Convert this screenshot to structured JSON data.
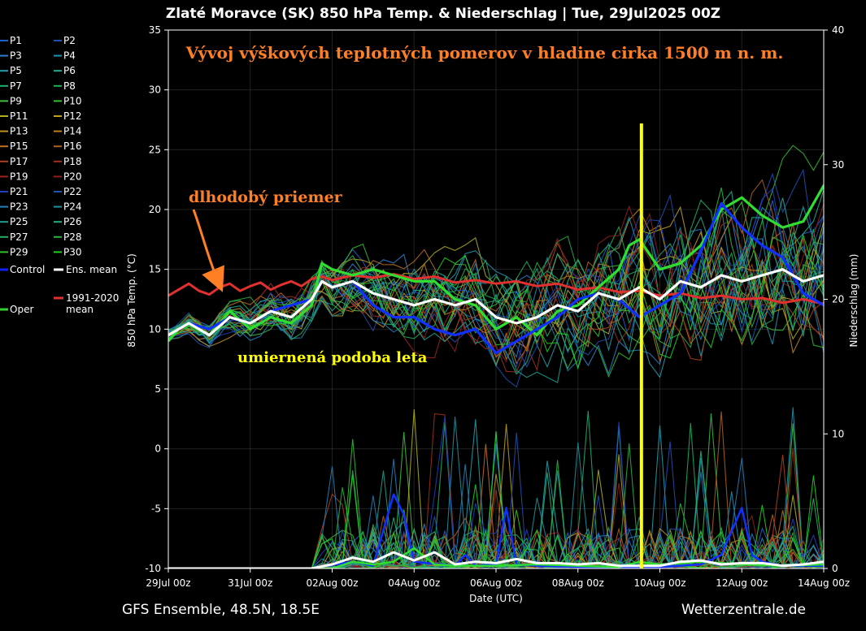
{
  "chart_data": {
    "type": "line",
    "title": "Zlaté Moravce  (SK)  850 hPa Temp. & Niederschlag | Tue, 29Jul2025 00Z",
    "ylabel": "850 hPa Temp. (°C)",
    "y2label": "Niederschlag (mm)",
    "xlabel": "Date (UTC)",
    "ylim": [
      -10,
      35
    ],
    "y2lim": [
      0,
      40
    ],
    "xlim": [
      0,
      16
    ],
    "y_ticks": [
      "35",
      "30",
      "25",
      "20",
      "15",
      "10",
      "5",
      "0",
      "-5",
      "-10"
    ],
    "y_tick_values": [
      35,
      30,
      25,
      20,
      15,
      10,
      5,
      0,
      -5,
      -10
    ],
    "y2_ticks": [
      "40",
      "30",
      "20",
      "10",
      "0"
    ],
    "y2_tick_values": [
      40,
      30,
      20,
      10,
      0
    ],
    "x_ticks": [
      "29Jul 00z",
      "31Jul 00z",
      "02Aug 00z",
      "04Aug 00z",
      "06Aug 00z",
      "08Aug 00z",
      "10Aug 00z",
      "12Aug 00z",
      "14Aug 00z"
    ],
    "x_tick_values": [
      0,
      2,
      4,
      6,
      8,
      10,
      12,
      14,
      16
    ],
    "grid": true,
    "legend_placement": "left",
    "legend": [
      {
        "label": "P1",
        "color": "#1f5fd0"
      },
      {
        "label": "P2",
        "color": "#1f4fb0"
      },
      {
        "label": "P3",
        "color": "#2a7fd0"
      },
      {
        "label": "P4",
        "color": "#2090b0"
      },
      {
        "label": "P5",
        "color": "#20a0b0"
      },
      {
        "label": "P6",
        "color": "#20b090"
      },
      {
        "label": "P7",
        "color": "#20b070"
      },
      {
        "label": "P8",
        "color": "#20b050"
      },
      {
        "label": "P9",
        "color": "#40c040"
      },
      {
        "label": "P10",
        "color": "#30c030"
      },
      {
        "label": "P11",
        "color": "#b0b020"
      },
      {
        "label": "P12",
        "color": "#c0a020"
      },
      {
        "label": "P13",
        "color": "#c09020"
      },
      {
        "label": "P14",
        "color": "#c08020"
      },
      {
        "label": "P15",
        "color": "#c07020"
      },
      {
        "label": "P16",
        "color": "#b06020"
      },
      {
        "label": "P17",
        "color": "#b04020"
      },
      {
        "label": "P18",
        "color": "#a03020"
      },
      {
        "label": "P19",
        "color": "#a02020"
      },
      {
        "label": "P20",
        "color": "#902020"
      },
      {
        "label": "P21",
        "color": "#2040c0"
      },
      {
        "label": "P22",
        "color": "#2050b0"
      },
      {
        "label": "P23",
        "color": "#2080c0"
      },
      {
        "label": "P24",
        "color": "#2090a0"
      },
      {
        "label": "P25",
        "color": "#20a090"
      },
      {
        "label": "P26",
        "color": "#20b080"
      },
      {
        "label": "P27",
        "color": "#20b060"
      },
      {
        "label": "P28",
        "color": "#30b040"
      },
      {
        "label": "P29",
        "color": "#30c030"
      },
      {
        "label": "P30",
        "color": "#20d020"
      },
      {
        "label": "Control",
        "color": "#1020ff"
      },
      {
        "label": "Ens. mean",
        "color": "#ffffff"
      },
      {
        "label": "1991-2020",
        "label2": "mean",
        "color": "#e03030"
      },
      {
        "label": "Oper",
        "color": "#30d030"
      }
    ],
    "series": [
      {
        "name": "Oper",
        "color": "#30dd30",
        "width": 3.2,
        "values": [
          [
            0,
            9
          ],
          [
            0.25,
            10
          ],
          [
            0.5,
            10.5
          ],
          [
            1,
            9.5
          ],
          [
            1.25,
            10.5
          ],
          [
            1.5,
            11.5
          ],
          [
            2,
            10
          ],
          [
            2.5,
            11
          ],
          [
            3,
            10.5
          ],
          [
            3.5,
            12
          ],
          [
            3.75,
            15.5
          ],
          [
            4,
            15
          ],
          [
            4.5,
            14.5
          ],
          [
            5,
            15
          ],
          [
            5.5,
            14.5
          ],
          [
            6,
            14
          ],
          [
            6.5,
            14
          ],
          [
            7,
            12.5
          ],
          [
            7.5,
            12
          ],
          [
            8,
            10
          ],
          [
            8.5,
            11
          ],
          [
            9,
            9.5
          ],
          [
            9.5,
            11.5
          ],
          [
            10,
            12
          ],
          [
            10.5,
            13.5
          ],
          [
            11,
            15
          ],
          [
            11.25,
            17
          ],
          [
            11.5,
            17.5
          ],
          [
            12,
            15
          ],
          [
            12.5,
            15.5
          ],
          [
            13,
            17
          ],
          [
            13.5,
            20
          ],
          [
            14,
            21
          ],
          [
            14.5,
            19.5
          ],
          [
            15,
            18.5
          ],
          [
            15.5,
            19
          ],
          [
            16,
            22
          ],
          [
            16.2,
            21.5
          ]
        ]
      },
      {
        "name": "Control",
        "color": "#1030ff",
        "width": 3.2,
        "values": [
          [
            0,
            9.5
          ],
          [
            0.5,
            10.5
          ],
          [
            1,
            10
          ],
          [
            1.5,
            11
          ],
          [
            2,
            10.5
          ],
          [
            2.5,
            11.5
          ],
          [
            3,
            12
          ],
          [
            3.5,
            12.5
          ],
          [
            3.75,
            14
          ],
          [
            4,
            13.5
          ],
          [
            4.5,
            14
          ],
          [
            5,
            12
          ],
          [
            5.5,
            11
          ],
          [
            6,
            11
          ],
          [
            6.5,
            10
          ],
          [
            7,
            9.5
          ],
          [
            7.5,
            10
          ],
          [
            8,
            8
          ],
          [
            8.5,
            9
          ],
          [
            9,
            10
          ],
          [
            9.5,
            11
          ],
          [
            10,
            12.5
          ],
          [
            10.5,
            13
          ],
          [
            11,
            12.5
          ],
          [
            11.5,
            11
          ],
          [
            12,
            12
          ],
          [
            12.5,
            13
          ],
          [
            13,
            16.5
          ],
          [
            13.5,
            20.5
          ],
          [
            14,
            18.5
          ],
          [
            14.5,
            17
          ],
          [
            15,
            16
          ],
          [
            15.5,
            13
          ],
          [
            16,
            12
          ],
          [
            16.2,
            12
          ]
        ]
      },
      {
        "name": "Ens. mean",
        "color": "#ffffff",
        "width": 3.2,
        "values": [
          [
            0,
            9.5
          ],
          [
            0.5,
            10.5
          ],
          [
            1,
            9.5
          ],
          [
            1.5,
            11
          ],
          [
            2,
            10.5
          ],
          [
            2.5,
            11.5
          ],
          [
            3,
            11
          ],
          [
            3.5,
            12.5
          ],
          [
            3.75,
            14
          ],
          [
            4,
            13.5
          ],
          [
            4.5,
            14
          ],
          [
            5,
            13
          ],
          [
            5.5,
            12.5
          ],
          [
            6,
            12
          ],
          [
            6.5,
            12.5
          ],
          [
            7,
            12
          ],
          [
            7.5,
            12.5
          ],
          [
            8,
            11
          ],
          [
            8.5,
            10.5
          ],
          [
            9,
            11
          ],
          [
            9.5,
            12
          ],
          [
            10,
            11.5
          ],
          [
            10.5,
            13
          ],
          [
            11,
            12.5
          ],
          [
            11.5,
            13.5
          ],
          [
            12,
            12.5
          ],
          [
            12.5,
            14
          ],
          [
            13,
            13.5
          ],
          [
            13.5,
            14.5
          ],
          [
            14,
            14
          ],
          [
            14.5,
            14.5
          ],
          [
            15,
            15
          ],
          [
            15.5,
            14
          ],
          [
            16,
            14.5
          ],
          [
            16.2,
            14
          ]
        ]
      },
      {
        "name": "1991-2020 mean",
        "color": "#e03030",
        "width": 3,
        "values": [
          [
            0,
            12.8
          ],
          [
            0.25,
            13.3
          ],
          [
            0.5,
            13.8
          ],
          [
            0.75,
            13.2
          ],
          [
            1,
            12.9
          ],
          [
            1.25,
            13.5
          ],
          [
            1.5,
            13.8
          ],
          [
            1.75,
            13.2
          ],
          [
            2,
            13.6
          ],
          [
            2.25,
            13.9
          ],
          [
            2.5,
            13.3
          ],
          [
            2.75,
            13.7
          ],
          [
            3,
            14
          ],
          [
            3.25,
            13.6
          ],
          [
            3.5,
            14.2
          ],
          [
            3.75,
            14.4
          ],
          [
            4,
            14.1
          ],
          [
            4.5,
            14.5
          ],
          [
            5,
            14.3
          ],
          [
            5.5,
            14.6
          ],
          [
            6,
            14.2
          ],
          [
            6.5,
            14.4
          ],
          [
            7,
            13.9
          ],
          [
            7.5,
            14.1
          ],
          [
            8,
            13.8
          ],
          [
            8.5,
            14
          ],
          [
            9,
            13.6
          ],
          [
            9.5,
            13.8
          ],
          [
            10,
            13.3
          ],
          [
            10.5,
            13.5
          ],
          [
            11,
            13.1
          ],
          [
            11.5,
            13.2
          ],
          [
            12,
            12.8
          ],
          [
            12.5,
            13
          ],
          [
            13,
            12.6
          ],
          [
            13.5,
            12.8
          ],
          [
            14,
            12.5
          ],
          [
            14.5,
            12.6
          ],
          [
            15,
            12.2
          ],
          [
            15.5,
            12.5
          ],
          [
            16,
            12.1
          ],
          [
            16.2,
            12.3
          ]
        ]
      }
    ],
    "precip_series": [
      {
        "name": "Control",
        "color": "#1030ff",
        "width": 2.5,
        "values": [
          [
            0,
            0
          ],
          [
            3.5,
            0
          ],
          [
            4.5,
            0.5
          ],
          [
            5,
            0.2
          ],
          [
            5.5,
            5.5
          ],
          [
            5.75,
            4
          ],
          [
            6,
            0.5
          ],
          [
            7,
            0.2
          ],
          [
            7.25,
            1
          ],
          [
            7.5,
            0.2
          ],
          [
            8,
            0.3
          ],
          [
            8.25,
            4.5
          ],
          [
            8.5,
            0.3
          ],
          [
            9,
            0.2
          ],
          [
            10,
            0.1
          ],
          [
            11,
            0.1
          ],
          [
            12,
            0.1
          ],
          [
            13,
            0.3
          ],
          [
            13.5,
            1
          ],
          [
            14,
            4.5
          ],
          [
            14.25,
            1
          ],
          [
            14.5,
            0.5
          ],
          [
            15,
            0.2
          ],
          [
            16,
            0.2
          ],
          [
            16.2,
            0.1
          ]
        ]
      },
      {
        "name": "Oper",
        "color": "#30dd30",
        "width": 2.5,
        "values": [
          [
            0,
            0
          ],
          [
            4,
            0
          ],
          [
            4.5,
            0.5
          ],
          [
            5,
            0.3
          ],
          [
            5.5,
            0.5
          ],
          [
            6,
            1.5
          ],
          [
            6.5,
            0.3
          ],
          [
            7,
            0.2
          ],
          [
            8,
            0.2
          ],
          [
            9,
            0.3
          ],
          [
            10,
            0.2
          ],
          [
            11,
            0.1
          ],
          [
            11.5,
            0.5
          ],
          [
            12,
            0.3
          ],
          [
            13,
            0.5
          ],
          [
            14,
            0.3
          ],
          [
            15,
            0.2
          ],
          [
            16,
            0.3
          ],
          [
            16.2,
            0.1
          ]
        ]
      },
      {
        "name": "Ens. mean",
        "color": "#ffffff",
        "width": 3,
        "values": [
          [
            0,
            0
          ],
          [
            3.5,
            0
          ],
          [
            4,
            0.3
          ],
          [
            4.5,
            0.8
          ],
          [
            5,
            0.5
          ],
          [
            5.5,
            1.2
          ],
          [
            6,
            0.6
          ],
          [
            6.5,
            1.2
          ],
          [
            7,
            0.3
          ],
          [
            7.5,
            0.5
          ],
          [
            8,
            0.4
          ],
          [
            8.5,
            0.7
          ],
          [
            9,
            0.4
          ],
          [
            9.5,
            0.4
          ],
          [
            10,
            0.3
          ],
          [
            10.5,
            0.4
          ],
          [
            11,
            0.2
          ],
          [
            12,
            0.2
          ],
          [
            12.5,
            0.5
          ],
          [
            13,
            0.6
          ],
          [
            13.5,
            0.3
          ],
          [
            14,
            0.4
          ],
          [
            14.5,
            0.4
          ],
          [
            15,
            0.2
          ],
          [
            15.5,
            0.3
          ],
          [
            16,
            0.5
          ],
          [
            16.2,
            0.3
          ]
        ]
      }
    ],
    "vline": {
      "x": 11.55,
      "color": "#ffff00"
    }
  },
  "annotations": {
    "heading": "Vývoj výškových teplotných pomerov v hladine cirka 1500 m n. m.",
    "longterm": "dlhodobý priemer",
    "summer": "umiernená podoba leta",
    "heading_color": "#ff7f24",
    "longterm_color": "#ff7f24",
    "summer_color": "#ffff00"
  },
  "footer": {
    "left": "GFS Ensemble, 48.5N, 18.5E",
    "right": "Wetterzentrale.de"
  }
}
